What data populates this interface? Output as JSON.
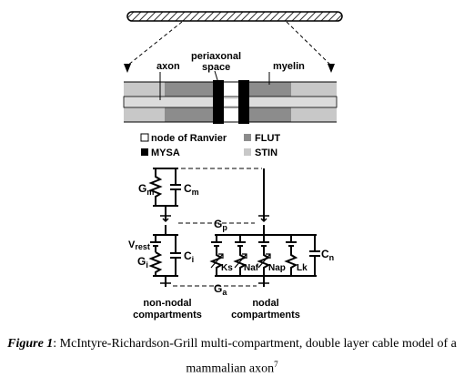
{
  "labels": {
    "axon": "axon",
    "periaxonal_line1": "periaxonal",
    "periaxonal_line2": "space",
    "myelin": "myelin"
  },
  "legend": {
    "node": "node of Ranvier",
    "flut": "FLUT",
    "mysa": "MYSA",
    "stin": "STIN"
  },
  "circuit": {
    "gm_main": "G",
    "gm_sub": "m",
    "cm_main": "C",
    "cm_sub": "m",
    "gp_main": "G",
    "gp_sub": "p",
    "vrest_main": "V",
    "vrest_sub": "rest",
    "gi_main": "G",
    "gi_sub": "i",
    "ci_main": "C",
    "ci_sub": "i",
    "ga_main": "G",
    "ga_sub": "a",
    "cn_main": "C",
    "cn_sub": "n",
    "ks": "Ks",
    "naf": "Naf",
    "nap": "Nap",
    "lk": "Lk",
    "non_nodal_1": "non-nodal",
    "non_nodal_2": "compartments",
    "nodal_1": "nodal",
    "nodal_2": "compartments"
  },
  "caption": {
    "label": "Figure 1",
    "text": ": McIntyre-Richardson-Grill multi-compartment, double layer cable model of a",
    "line2": "mammalian axon",
    "ref": "7"
  },
  "colors": {
    "node": "#ffffff",
    "mysa": "#000000",
    "flut": "#8c8c8c",
    "stin": "#c8c8c8"
  }
}
